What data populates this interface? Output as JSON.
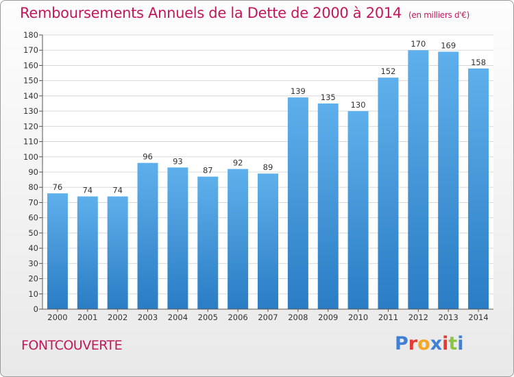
{
  "header": {
    "title": "Remboursements Annuels de la Dette de 2000 à 2014",
    "unit": "(en milliers d'€)"
  },
  "footer": {
    "commune": "FONTCOUVERTE",
    "logo_letters": [
      "P",
      "r",
      "o",
      "x",
      "i",
      "t",
      "i"
    ],
    "logo_colors": [
      "#3f7fd6",
      "#e53935",
      "#f5a623",
      "#3f7fd6",
      "#e53935",
      "#8cc63f",
      "#3f7fd6"
    ]
  },
  "colors": {
    "bar_top": "#5eb0ec",
    "bar_bottom": "#2a7cc4",
    "title": "#c2185b",
    "grid": "#d8d8d8"
  },
  "chart_data": {
    "type": "bar",
    "title": "Remboursements Annuels de la Dette de 2000 à 2014",
    "categories": [
      "2000",
      "2001",
      "2002",
      "2003",
      "2004",
      "2005",
      "2006",
      "2007",
      "2008",
      "2009",
      "2010",
      "2011",
      "2012",
      "2013",
      "2014"
    ],
    "values": [
      76,
      74,
      74,
      96,
      93,
      87,
      92,
      89,
      139,
      135,
      130,
      152,
      170,
      169,
      158
    ],
    "ylim": [
      0,
      180
    ],
    "yticks": [
      0,
      10,
      20,
      30,
      40,
      50,
      60,
      70,
      80,
      90,
      100,
      110,
      120,
      130,
      140,
      150,
      160,
      170,
      180
    ],
    "grid": true,
    "data_labels": true
  }
}
